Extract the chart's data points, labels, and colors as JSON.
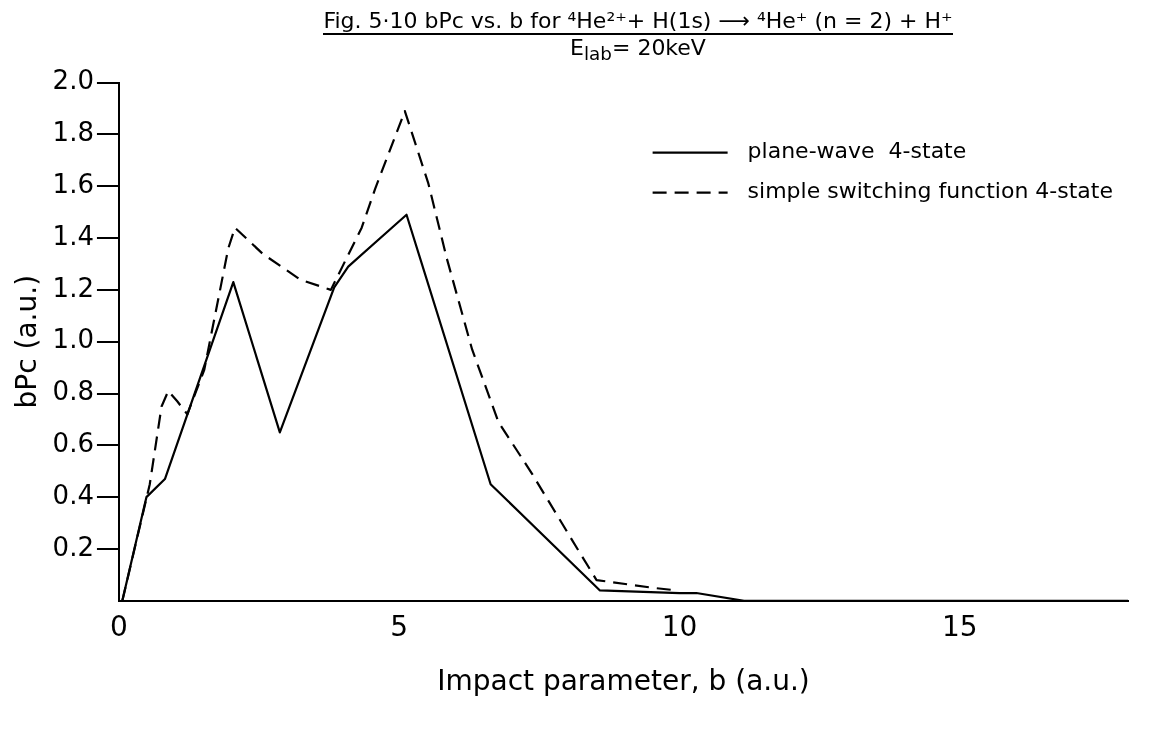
{
  "chart_data": {
    "type": "line",
    "title": "Fig. 5·10  bPc vs. b for ⁴He²⁺+ H(1s) ⟶ ⁴He⁺ (n = 2) + H⁺",
    "subtitle": "E$_{lab}$= 20keV",
    "xlabel": "Impact parameter, b (a.u.)",
    "ylabel": "bPc (a.u.)",
    "xlim": [
      0,
      18
    ],
    "xticks": [
      0,
      5,
      10,
      15
    ],
    "ylim": [
      0,
      2
    ],
    "yticks": [
      0.2,
      0.4,
      0.6,
      0.8,
      {
        "value": 1,
        "label": "1.0"
      },
      1.2,
      1.4,
      1.6,
      1.8,
      {
        "value": 2,
        "label": "2.0"
      }
    ],
    "grid": false,
    "legend": "top right",
    "marker": "none",
    "series": [
      {
        "name": "plane-wave  4-state",
        "color": "#000000",
        "line_style": "solid",
        "x": [
          0.06,
          0.49,
          0.82,
          2.04,
          2.87,
          3.84,
          4.09,
          5.13,
          6.63,
          8.58,
          10.0,
          10.3,
          11.15,
          18
        ],
        "values": [
          0.0,
          0.4,
          0.47,
          1.23,
          0.65,
          1.21,
          1.29,
          1.49,
          0.45,
          0.04,
          0.03,
          0.03,
          0.0,
          0.0
        ]
      },
      {
        "name": "simple switching function 4-state",
        "color": "#000000",
        "line_style": "dashed",
        "x": [
          0.06,
          0.55,
          0.76,
          0.88,
          1.04,
          1.22,
          1.52,
          1.74,
          1.95,
          2.07,
          2.56,
          3.23,
          3.78,
          4.33,
          4.57,
          5.1,
          5.52,
          5.85,
          6.3,
          6.77,
          7.37,
          8.18,
          8.52,
          9.53,
          9.95
        ],
        "values": [
          0.0,
          0.45,
          0.75,
          0.81,
          0.77,
          0.72,
          0.89,
          1.13,
          1.36,
          1.44,
          1.34,
          1.24,
          1.2,
          1.44,
          1.59,
          1.89,
          1.61,
          1.32,
          0.97,
          0.69,
          0.49,
          0.2,
          0.08,
          0.05,
          0.04
        ]
      }
    ]
  }
}
